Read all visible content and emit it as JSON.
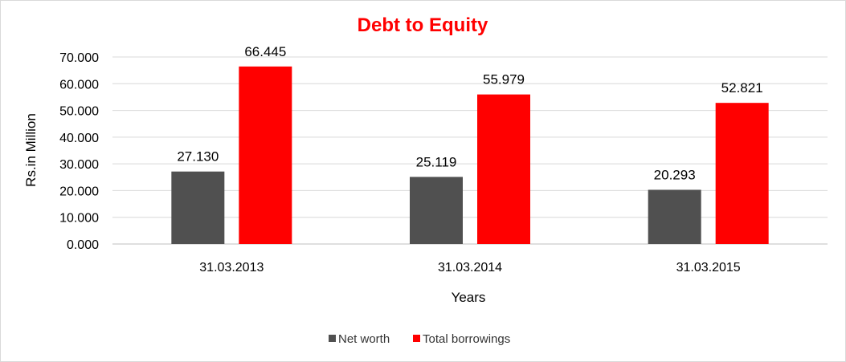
{
  "chart_data": {
    "type": "bar",
    "title": "Debt to Equity",
    "xlabel": "Years",
    "ylabel": "Rs.in Million",
    "categories": [
      "31.03.2013",
      "31.03.2014",
      "31.03.2015"
    ],
    "series": [
      {
        "name": "Net worth",
        "values": [
          27.13,
          25.119,
          20.293
        ],
        "labels": [
          "27.130",
          "25.119",
          "20.293"
        ],
        "color": "#505050"
      },
      {
        "name": "Total borrowings",
        "values": [
          66.445,
          55.979,
          52.821
        ],
        "labels": [
          "66.445",
          "55.979",
          "52.821"
        ],
        "color": "#ff0000"
      }
    ],
    "yticks": [
      "0.000",
      "10.000",
      "20.000",
      "30.000",
      "40.000",
      "50.000",
      "60.000",
      "70.000"
    ],
    "ylim": [
      0,
      70
    ],
    "grid": true,
    "legend_position": "bottom",
    "title_color": "#ff0000"
  }
}
